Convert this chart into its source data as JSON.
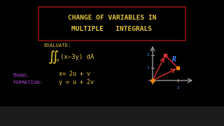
{
  "bg_color": "#000000",
  "title_box_color": "#8B1010",
  "title_text_line1": "CHANGE OF VARIABLES IN",
  "title_text_line2": "MULTIPLE   INTEGRALS",
  "title_color": "#E8C840",
  "evaluate_label": "EVALUATE:",
  "integral_color": "#E8C840",
  "transform_label_line1": "TRANS-",
  "transform_label_line2": "FORMATION:",
  "transform_color": "#AA44CC",
  "eq1": "x= 2u + v",
  "eq2": "y = u + 2v",
  "eq_color": "#E8C840",
  "axis_color": "#AAAAAA",
  "red_color": "#DD3333",
  "orange_color": "#FF8800",
  "blue_color": "#4488FF",
  "region_label": "R",
  "tick_color": "#4488FF",
  "body_text_color": "#E8C840",
  "nav_bar_color": "#222222"
}
